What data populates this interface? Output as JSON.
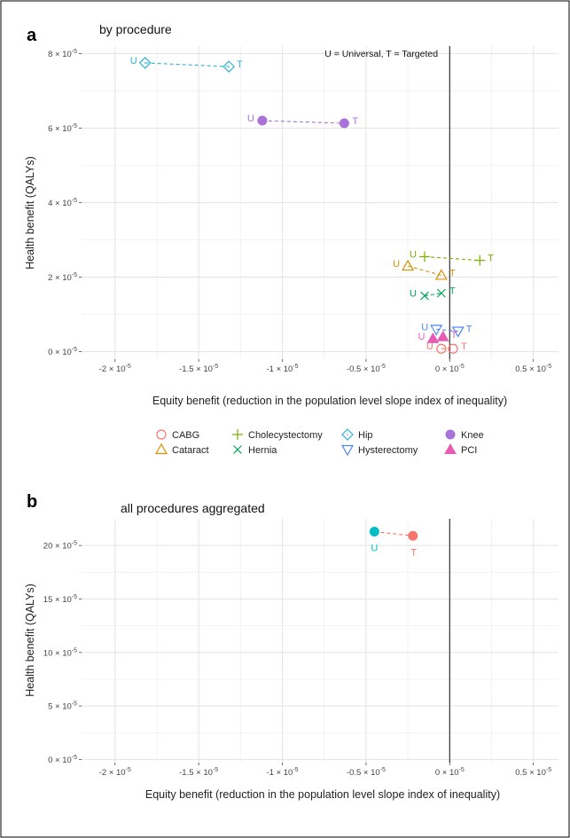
{
  "chart_data": [
    {
      "type": "scatter",
      "panel_label": "a",
      "title": "by procedure",
      "annotation": "U = Universal, T = Targeted",
      "xlabel": "Equity benefit (reduction in the population level slope index of inequality)",
      "ylabel": "Health benefit (QALYs)",
      "xlim": [
        -2.2e-05,
        6.5e-06
      ],
      "ylim": [
        -2e-06,
        8.2e-05
      ],
      "x_ticks": [
        -2e-05,
        -1.5e-05,
        -1e-05,
        -5e-06,
        0,
        5e-06
      ],
      "x_tick_labels": [
        "-2 × 10",
        "-1.5 × 10",
        "-1 × 10",
        "-0.5 × 10",
        "0 × 10",
        "0.5 × 10"
      ],
      "y_ticks": [
        0,
        2e-05,
        4e-05,
        6e-05,
        8e-05
      ],
      "y_tick_labels": [
        "0 × 10",
        "2 × 10",
        "4 × 10",
        "6 × 10",
        "8 × 10"
      ],
      "tick_exponent": "-5",
      "grid": true,
      "series": [
        {
          "name": "CABG",
          "color": "#F8766D",
          "shape": "circle-open",
          "points": [
            {
              "label": "U",
              "x": -5e-07,
              "y": 8e-07
            },
            {
              "label": "T",
              "x": 2e-07,
              "y": 8e-07
            }
          ]
        },
        {
          "name": "Cataract",
          "color": "#D89000",
          "shape": "triangle-open",
          "points": [
            {
              "label": "U",
              "x": -2.5e-06,
              "y": 2.3e-05
            },
            {
              "label": "T",
              "x": -5e-07,
              "y": 2.05e-05
            }
          ]
        },
        {
          "name": "Cholecystectomy",
          "color": "#7CAE00",
          "shape": "plus",
          "points": [
            {
              "label": "U",
              "x": -1.5e-06,
              "y": 2.55e-05
            },
            {
              "label": "T",
              "x": 1.8e-06,
              "y": 2.45e-05
            }
          ]
        },
        {
          "name": "Hernia",
          "color": "#00A65A",
          "shape": "cross",
          "points": [
            {
              "label": "U",
              "x": -1.5e-06,
              "y": 1.5e-05
            },
            {
              "label": "T",
              "x": -5e-07,
              "y": 1.57e-05
            }
          ]
        },
        {
          "name": "Hip",
          "color": "#2DB4D2",
          "shape": "diamond-open",
          "points": [
            {
              "label": "U",
              "x": -1.82e-05,
              "y": 7.75e-05
            },
            {
              "label": "T",
              "x": -1.32e-05,
              "y": 7.65e-05
            }
          ]
        },
        {
          "name": "Hysterectomy",
          "color": "#4F86F7",
          "shape": "triangle-down-open",
          "points": [
            {
              "label": "U",
              "x": -8e-07,
              "y": 6e-06
            },
            {
              "label": "T",
              "x": 5e-07,
              "y": 5.5e-06
            }
          ]
        },
        {
          "name": "Knee",
          "color": "#A872D8",
          "shape": "circle-filled",
          "points": [
            {
              "label": "U",
              "x": -1.12e-05,
              "y": 6.2e-05
            },
            {
              "label": "T",
              "x": -6.3e-06,
              "y": 6.13e-05
            }
          ]
        },
        {
          "name": "PCI",
          "color": "#E85BB4",
          "shape": "triangle-filled",
          "points": [
            {
              "label": "U",
              "x": -1e-06,
              "y": 3.5e-06
            },
            {
              "label": "T",
              "x": -4e-07,
              "y": 4e-06
            }
          ]
        }
      ]
    },
    {
      "type": "scatter",
      "panel_label": "b",
      "title": "all procedures aggregated",
      "xlabel": "Equity benefit (reduction in the population level slope index of inequality)",
      "ylabel": "Health benefit (QALYs)",
      "xlim": [
        -2.2e-05,
        6.5e-06
      ],
      "ylim": [
        -3e-06,
        0.000225
      ],
      "x_ticks": [
        -2e-05,
        -1.5e-05,
        -1e-05,
        -5e-06,
        0,
        5e-06
      ],
      "x_tick_labels": [
        "-2 × 10",
        "-1.5 × 10",
        "-1 × 10",
        "-0.5 × 10",
        "0 × 10",
        "0.5 × 10"
      ],
      "y_ticks": [
        0,
        5e-05,
        0.0001,
        0.00015,
        0.0002
      ],
      "y_tick_labels": [
        "0 × 10",
        "5 × 10",
        "10 × 10",
        "15 × 10",
        "20 × 10"
      ],
      "tick_exponent": "-5",
      "grid": true,
      "series": [
        {
          "name": "",
          "color": "#F8766D",
          "shape": "circle-filled",
          "points": [
            {
              "label": "U",
              "x": -4.5e-06,
              "y": 0.000213,
              "color": "#00BFC4"
            },
            {
              "label": "T",
              "x": -2.2e-06,
              "y": 0.000209,
              "color": "#F8766D"
            }
          ]
        }
      ]
    }
  ]
}
